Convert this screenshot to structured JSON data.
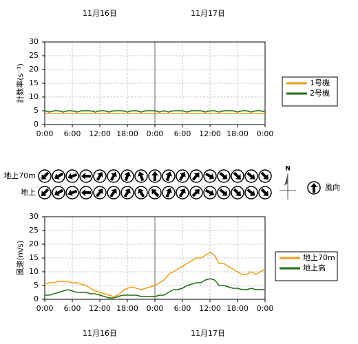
{
  "dates": [
    "11月16日",
    "11月17日"
  ],
  "chart_data": [
    {
      "type": "line",
      "ylabel": "計数率(s⁻¹)",
      "x": [
        0,
        1,
        2,
        3,
        4,
        5,
        6,
        7,
        8,
        9,
        10,
        11,
        12,
        13,
        14,
        15,
        16,
        17,
        18,
        19,
        20,
        21,
        22,
        23,
        24,
        25,
        26,
        27,
        28,
        29,
        30,
        31,
        32,
        33,
        34,
        35,
        36,
        37,
        38,
        39,
        40,
        41,
        42,
        43,
        44,
        45,
        46,
        47,
        48
      ],
      "xlim": [
        0,
        48
      ],
      "xticks": [
        {
          "value": 0,
          "label": "0:00"
        },
        {
          "value": 6,
          "label": "6:00"
        },
        {
          "value": 12,
          "label": "12:00"
        },
        {
          "value": 18,
          "label": "18:00"
        },
        {
          "value": 24,
          "label": "0:00"
        },
        {
          "value": 30,
          "label": "6:00"
        },
        {
          "value": 36,
          "label": "12:00"
        },
        {
          "value": 42,
          "label": "18:00"
        },
        {
          "value": 48,
          "label": "0:00"
        }
      ],
      "ylim": [
        0,
        30
      ],
      "yticks": [
        0,
        5,
        10,
        15,
        20,
        25,
        30
      ],
      "grid": true,
      "series": [
        {
          "name": "1号機",
          "color": "#f39c12",
          "values": [
            4,
            4,
            4,
            4,
            4,
            4,
            4,
            4,
            4,
            4,
            4,
            4,
            4,
            4,
            4,
            4,
            4,
            4,
            4,
            4,
            4,
            4,
            4,
            4,
            4,
            4,
            4,
            4,
            4,
            4,
            4,
            4,
            4,
            4,
            4,
            4,
            4,
            4,
            4,
            4,
            4,
            4,
            4,
            4,
            4,
            4,
            4,
            4,
            4
          ]
        },
        {
          "name": "2号機",
          "color": "#1e6b12",
          "values": [
            5,
            4.5,
            5,
            5,
            4.5,
            5,
            5,
            4.5,
            5,
            5,
            5,
            4.5,
            5,
            5,
            4.5,
            5,
            5,
            5,
            4.5,
            5,
            5,
            4.5,
            5,
            5,
            5,
            4.5,
            5,
            4.5,
            5,
            5,
            5,
            4.5,
            5,
            5,
            5,
            4.5,
            5,
            5,
            4.5,
            5,
            5,
            5,
            4.5,
            5,
            5,
            4.5,
            5,
            5,
            4.5
          ]
        }
      ]
    },
    {
      "type": "line",
      "ylabel": "風速(m/s)",
      "x": [
        0,
        1,
        2,
        3,
        4,
        5,
        6,
        7,
        8,
        9,
        10,
        11,
        12,
        13,
        14,
        15,
        16,
        17,
        18,
        19,
        20,
        21,
        22,
        23,
        24,
        25,
        26,
        27,
        28,
        29,
        30,
        31,
        32,
        33,
        34,
        35,
        36,
        37,
        38,
        39,
        40,
        41,
        42,
        43,
        44,
        45,
        46,
        47,
        48
      ],
      "xlim": [
        0,
        48
      ],
      "xticks": [
        {
          "value": 0,
          "label": "0:00"
        },
        {
          "value": 6,
          "label": "6:00"
        },
        {
          "value": 12,
          "label": "12:00"
        },
        {
          "value": 18,
          "label": "18:00"
        },
        {
          "value": 24,
          "label": "0:00"
        },
        {
          "value": 30,
          "label": "6:00"
        },
        {
          "value": 36,
          "label": "12:00"
        },
        {
          "value": 42,
          "label": "18:00"
        },
        {
          "value": 48,
          "label": "0:00"
        }
      ],
      "ylim": [
        0,
        30
      ],
      "yticks": [
        0,
        5,
        10,
        15,
        20,
        25,
        30
      ],
      "grid": true,
      "series": [
        {
          "name": "地上70m",
          "color": "#f39c12",
          "values": [
            5.5,
            6,
            6,
            6.5,
            6.5,
            6.5,
            6,
            6,
            5.5,
            5,
            4,
            3,
            2.5,
            2,
            1.5,
            1,
            1.5,
            3,
            4,
            4.5,
            4,
            3.5,
            4,
            4.5,
            5,
            6,
            7,
            9,
            10,
            11,
            12,
            13,
            14,
            15,
            15,
            16,
            17,
            16,
            13,
            13,
            12,
            11,
            10,
            9,
            9,
            10,
            9,
            10,
            11
          ]
        },
        {
          "name": "地上高",
          "color": "#1e6b12",
          "values": [
            1.5,
            1.5,
            2,
            2.5,
            3,
            3.5,
            3,
            2.5,
            2.5,
            2.5,
            2,
            2,
            1.5,
            1,
            0.5,
            0.5,
            1,
            1.5,
            1.5,
            1.5,
            1.5,
            1,
            1,
            1,
            1,
            1.5,
            1.5,
            2.5,
            3.5,
            3.5,
            4,
            5,
            5.5,
            6,
            6,
            7,
            7.5,
            7,
            5,
            5,
            4.5,
            4,
            4,
            3.5,
            3.5,
            4,
            3.5,
            3.5,
            3.5
          ]
        }
      ]
    }
  ],
  "wind_direction": {
    "legend": "風向",
    "north": "N",
    "rows": [
      {
        "name": "地上70m",
        "values": [
          225,
          240,
          250,
          270,
          30,
          30,
          20,
          340,
          0,
          20,
          30,
          40,
          120,
          130,
          135,
          130,
          135
        ]
      },
      {
        "name": "地上",
        "values": [
          225,
          240,
          250,
          270,
          40,
          35,
          30,
          330,
          315,
          20,
          30,
          45,
          120,
          130,
          135,
          130,
          135
        ]
      }
    ]
  }
}
